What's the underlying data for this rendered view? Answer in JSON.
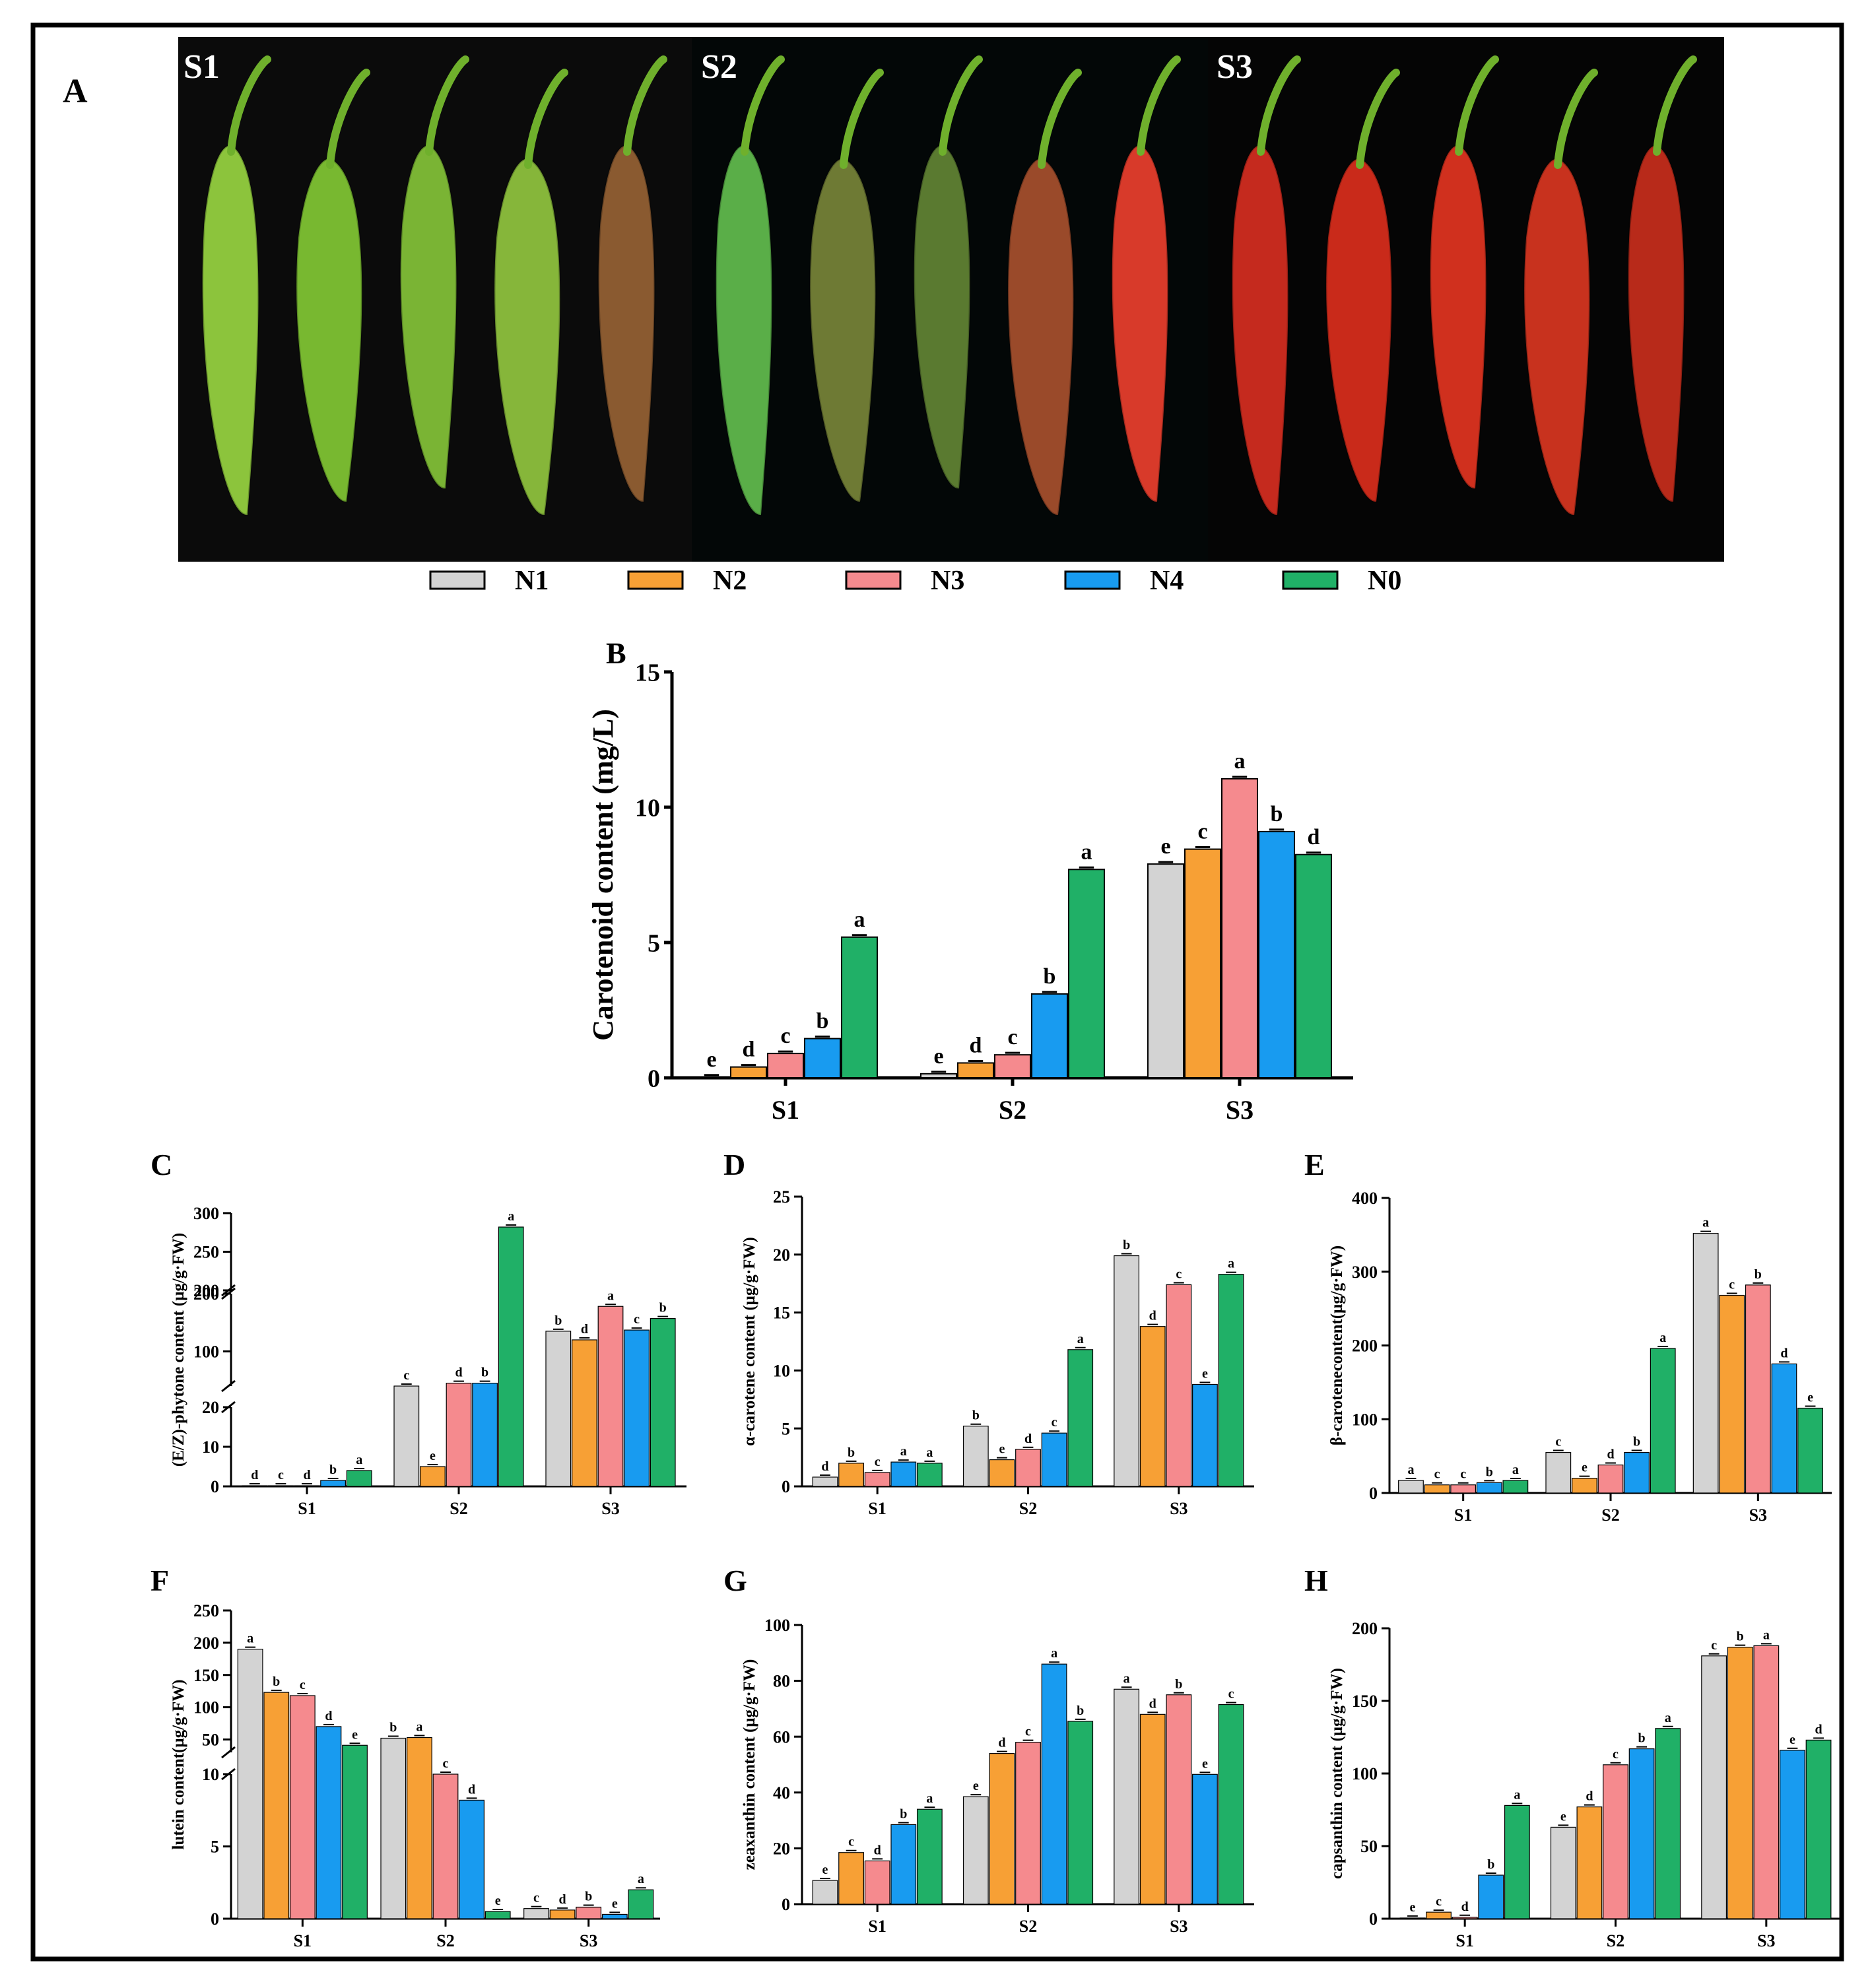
{
  "panel_labels": {
    "A": "A",
    "B": "B",
    "C": "C",
    "D": "D",
    "E": "E",
    "F": "F",
    "G": "G",
    "H": "H"
  },
  "photo": {
    "stages": [
      "S1",
      "S2",
      "S3"
    ],
    "pepper_colors": [
      [
        "#8cc43c",
        "#78b830",
        "#7ab434",
        "#86b63a",
        "#8a5a30"
      ],
      [
        "#5aae48",
        "#6e7a34",
        "#5a7a30",
        "#9a4a2a",
        "#d83a2a"
      ],
      [
        "#c52a1e",
        "#c92a1a",
        "#d0301e",
        "#c8321e",
        "#b82a1a"
      ]
    ]
  },
  "legend": {
    "items": [
      {
        "label": "N1",
        "color": "#d3d3d3"
      },
      {
        "label": "N2",
        "color": "#f7a035"
      },
      {
        "label": "N3",
        "color": "#f58a8e"
      },
      {
        "label": "N4",
        "color": "#189bf0"
      },
      {
        "label": "N0",
        "color": "#20b067"
      }
    ]
  },
  "chart_data": [
    {
      "panel": "B",
      "type": "bar",
      "title": "",
      "categories": [
        "S1",
        "S2",
        "S3"
      ],
      "xlabel": "",
      "ylabel": "Carotenoid content (mg/L)",
      "ylim": [
        0,
        15
      ],
      "yticks": [
        0,
        5,
        10,
        15
      ],
      "series": [
        {
          "name": "N1",
          "values": [
            0.03,
            0.15,
            7.9
          ],
          "letters": [
            "e",
            "e",
            "e"
          ]
        },
        {
          "name": "N2",
          "values": [
            0.4,
            0.55,
            8.45
          ],
          "letters": [
            "d",
            "d",
            "c"
          ]
        },
        {
          "name": "N3",
          "values": [
            0.9,
            0.85,
            11.05
          ],
          "letters": [
            "c",
            "c",
            "a"
          ]
        },
        {
          "name": "N4",
          "values": [
            1.45,
            3.1,
            9.1
          ],
          "letters": [
            "b",
            "b",
            "b"
          ]
        },
        {
          "name": "N0",
          "values": [
            5.2,
            7.7,
            8.25
          ],
          "letters": [
            "a",
            "a",
            "d"
          ]
        }
      ]
    },
    {
      "panel": "C",
      "type": "bar",
      "title": "",
      "categories": [
        "S1",
        "S2",
        "S3"
      ],
      "xlabel": "",
      "ylabel": "(E/Z)-phytone content (μg/g·FW)",
      "broken_axis": [
        {
          "range": [
            0,
            20
          ],
          "ticks": [
            0,
            10,
            20
          ]
        },
        {
          "range": [
            40,
            200
          ],
          "ticks": [
            100,
            200
          ]
        },
        {
          "range": [
            200,
            300
          ],
          "ticks": [
            200,
            250,
            300
          ]
        }
      ],
      "series": [
        {
          "name": "N1",
          "values": [
            0,
            40,
            135
          ],
          "letters": [
            "d",
            "c",
            "b"
          ]
        },
        {
          "name": "N2",
          "values": [
            0,
            5,
            120
          ],
          "letters": [
            "c",
            "e",
            "d"
          ]
        },
        {
          "name": "N3",
          "values": [
            0,
            45,
            178
          ],
          "letters": [
            "d",
            "d",
            "a"
          ]
        },
        {
          "name": "N4",
          "values": [
            1.5,
            45,
            137
          ],
          "letters": [
            "b",
            "b",
            "c"
          ]
        },
        {
          "name": "N0",
          "values": [
            4,
            282,
            157
          ],
          "letters": [
            "a",
            "a",
            "b"
          ]
        }
      ]
    },
    {
      "panel": "D",
      "type": "bar",
      "title": "",
      "categories": [
        "S1",
        "S2",
        "S3"
      ],
      "xlabel": "",
      "ylabel": "α-carotene content (μg/g·FW)",
      "ylim": [
        0,
        25
      ],
      "yticks": [
        0,
        5,
        10,
        15,
        20,
        25
      ],
      "series": [
        {
          "name": "N1",
          "values": [
            0.8,
            5.2,
            19.9
          ],
          "letters": [
            "d",
            "b",
            "b"
          ]
        },
        {
          "name": "N2",
          "values": [
            2.0,
            2.3,
            13.8
          ],
          "letters": [
            "b",
            "e",
            "d"
          ]
        },
        {
          "name": "N3",
          "values": [
            1.2,
            3.2,
            17.4
          ],
          "letters": [
            "c",
            "d",
            "c"
          ]
        },
        {
          "name": "N4",
          "values": [
            2.1,
            4.6,
            8.8
          ],
          "letters": [
            "a",
            "c",
            "e"
          ]
        },
        {
          "name": "N0",
          "values": [
            2.0,
            11.8,
            18.3
          ],
          "letters": [
            "a",
            "a",
            "a"
          ]
        }
      ]
    },
    {
      "panel": "E",
      "type": "bar",
      "title": "",
      "categories": [
        "S1",
        "S2",
        "S3"
      ],
      "xlabel": "",
      "ylabel": "β-carotenecontent(μg/g·FW)",
      "ylim": [
        0,
        400
      ],
      "yticks": [
        0,
        100,
        200,
        300,
        400
      ],
      "series": [
        {
          "name": "N1",
          "values": [
            17,
            55,
            352
          ],
          "letters": [
            "a",
            "c",
            "a"
          ]
        },
        {
          "name": "N2",
          "values": [
            11,
            20,
            268
          ],
          "letters": [
            "c",
            "e",
            "c"
          ]
        },
        {
          "name": "N3",
          "values": [
            11,
            38,
            282
          ],
          "letters": [
            "c",
            "d",
            "b"
          ]
        },
        {
          "name": "N4",
          "values": [
            14,
            55,
            175
          ],
          "letters": [
            "b",
            "b",
            "d"
          ]
        },
        {
          "name": "N0",
          "values": [
            17,
            196,
            115
          ],
          "letters": [
            "a",
            "a",
            "e"
          ]
        }
      ]
    },
    {
      "panel": "F",
      "type": "bar",
      "title": "",
      "categories": [
        "S1",
        "S2",
        "S3"
      ],
      "xlabel": "",
      "ylabel": "lutein content(μg/g·FW)",
      "broken_axis": [
        {
          "range": [
            0,
            10
          ],
          "ticks": [
            0,
            5,
            10
          ]
        },
        {
          "range": [
            30,
            250
          ],
          "ticks": [
            50,
            100,
            150,
            200,
            250
          ]
        }
      ],
      "series": [
        {
          "name": "N1",
          "values": [
            190,
            52,
            0.7
          ],
          "letters": [
            "a",
            "b",
            "c"
          ]
        },
        {
          "name": "N2",
          "values": [
            123,
            53,
            0.6
          ],
          "letters": [
            "b",
            "a",
            "d"
          ]
        },
        {
          "name": "N3",
          "values": [
            118,
            26,
            0.8
          ],
          "letters": [
            "c",
            "c",
            "b"
          ]
        },
        {
          "name": "N4",
          "values": [
            70,
            8.2,
            0.3
          ],
          "letters": [
            "d",
            "d",
            "e"
          ]
        },
        {
          "name": "N0",
          "values": [
            41,
            0.5,
            2.0
          ],
          "letters": [
            "e",
            "e",
            "a"
          ]
        }
      ]
    },
    {
      "panel": "G",
      "type": "bar",
      "title": "",
      "categories": [
        "S1",
        "S2",
        "S3"
      ],
      "xlabel": "",
      "ylabel": "zeaxanthin content (μg/g·FW)",
      "ylim": [
        0,
        100
      ],
      "yticks": [
        0,
        20,
        40,
        60,
        80,
        100
      ],
      "series": [
        {
          "name": "N1",
          "values": [
            8.5,
            38.5,
            77
          ],
          "letters": [
            "e",
            "e",
            "a"
          ]
        },
        {
          "name": "N2",
          "values": [
            18.5,
            54,
            68
          ],
          "letters": [
            "c",
            "d",
            "d"
          ]
        },
        {
          "name": "N3",
          "values": [
            15.5,
            58,
            75
          ],
          "letters": [
            "d",
            "c",
            "b"
          ]
        },
        {
          "name": "N4",
          "values": [
            28.5,
            86,
            46.5
          ],
          "letters": [
            "b",
            "a",
            "e"
          ]
        },
        {
          "name": "N0",
          "values": [
            34,
            65.5,
            71.5
          ],
          "letters": [
            "a",
            "b",
            "c"
          ]
        }
      ]
    },
    {
      "panel": "H",
      "type": "bar",
      "title": "",
      "categories": [
        "S1",
        "S2",
        "S3"
      ],
      "xlabel": "",
      "ylabel": "capsanthin content (μg/g·FW)",
      "ylim": [
        0,
        200
      ],
      "yticks": [
        0,
        50,
        100,
        150,
        200
      ],
      "series": [
        {
          "name": "N1",
          "values": [
            0.5,
            63,
            181
          ],
          "letters": [
            "e",
            "e",
            "c"
          ]
        },
        {
          "name": "N2",
          "values": [
            4.5,
            77,
            187
          ],
          "letters": [
            "c",
            "d",
            "b"
          ]
        },
        {
          "name": "N3",
          "values": [
            1,
            106,
            188
          ],
          "letters": [
            "d",
            "c",
            "a"
          ]
        },
        {
          "name": "N4",
          "values": [
            30,
            117,
            116
          ],
          "letters": [
            "b",
            "b",
            "e"
          ]
        },
        {
          "name": "N0",
          "values": [
            78,
            131,
            123
          ],
          "letters": [
            "a",
            "a",
            "d"
          ]
        }
      ]
    }
  ]
}
